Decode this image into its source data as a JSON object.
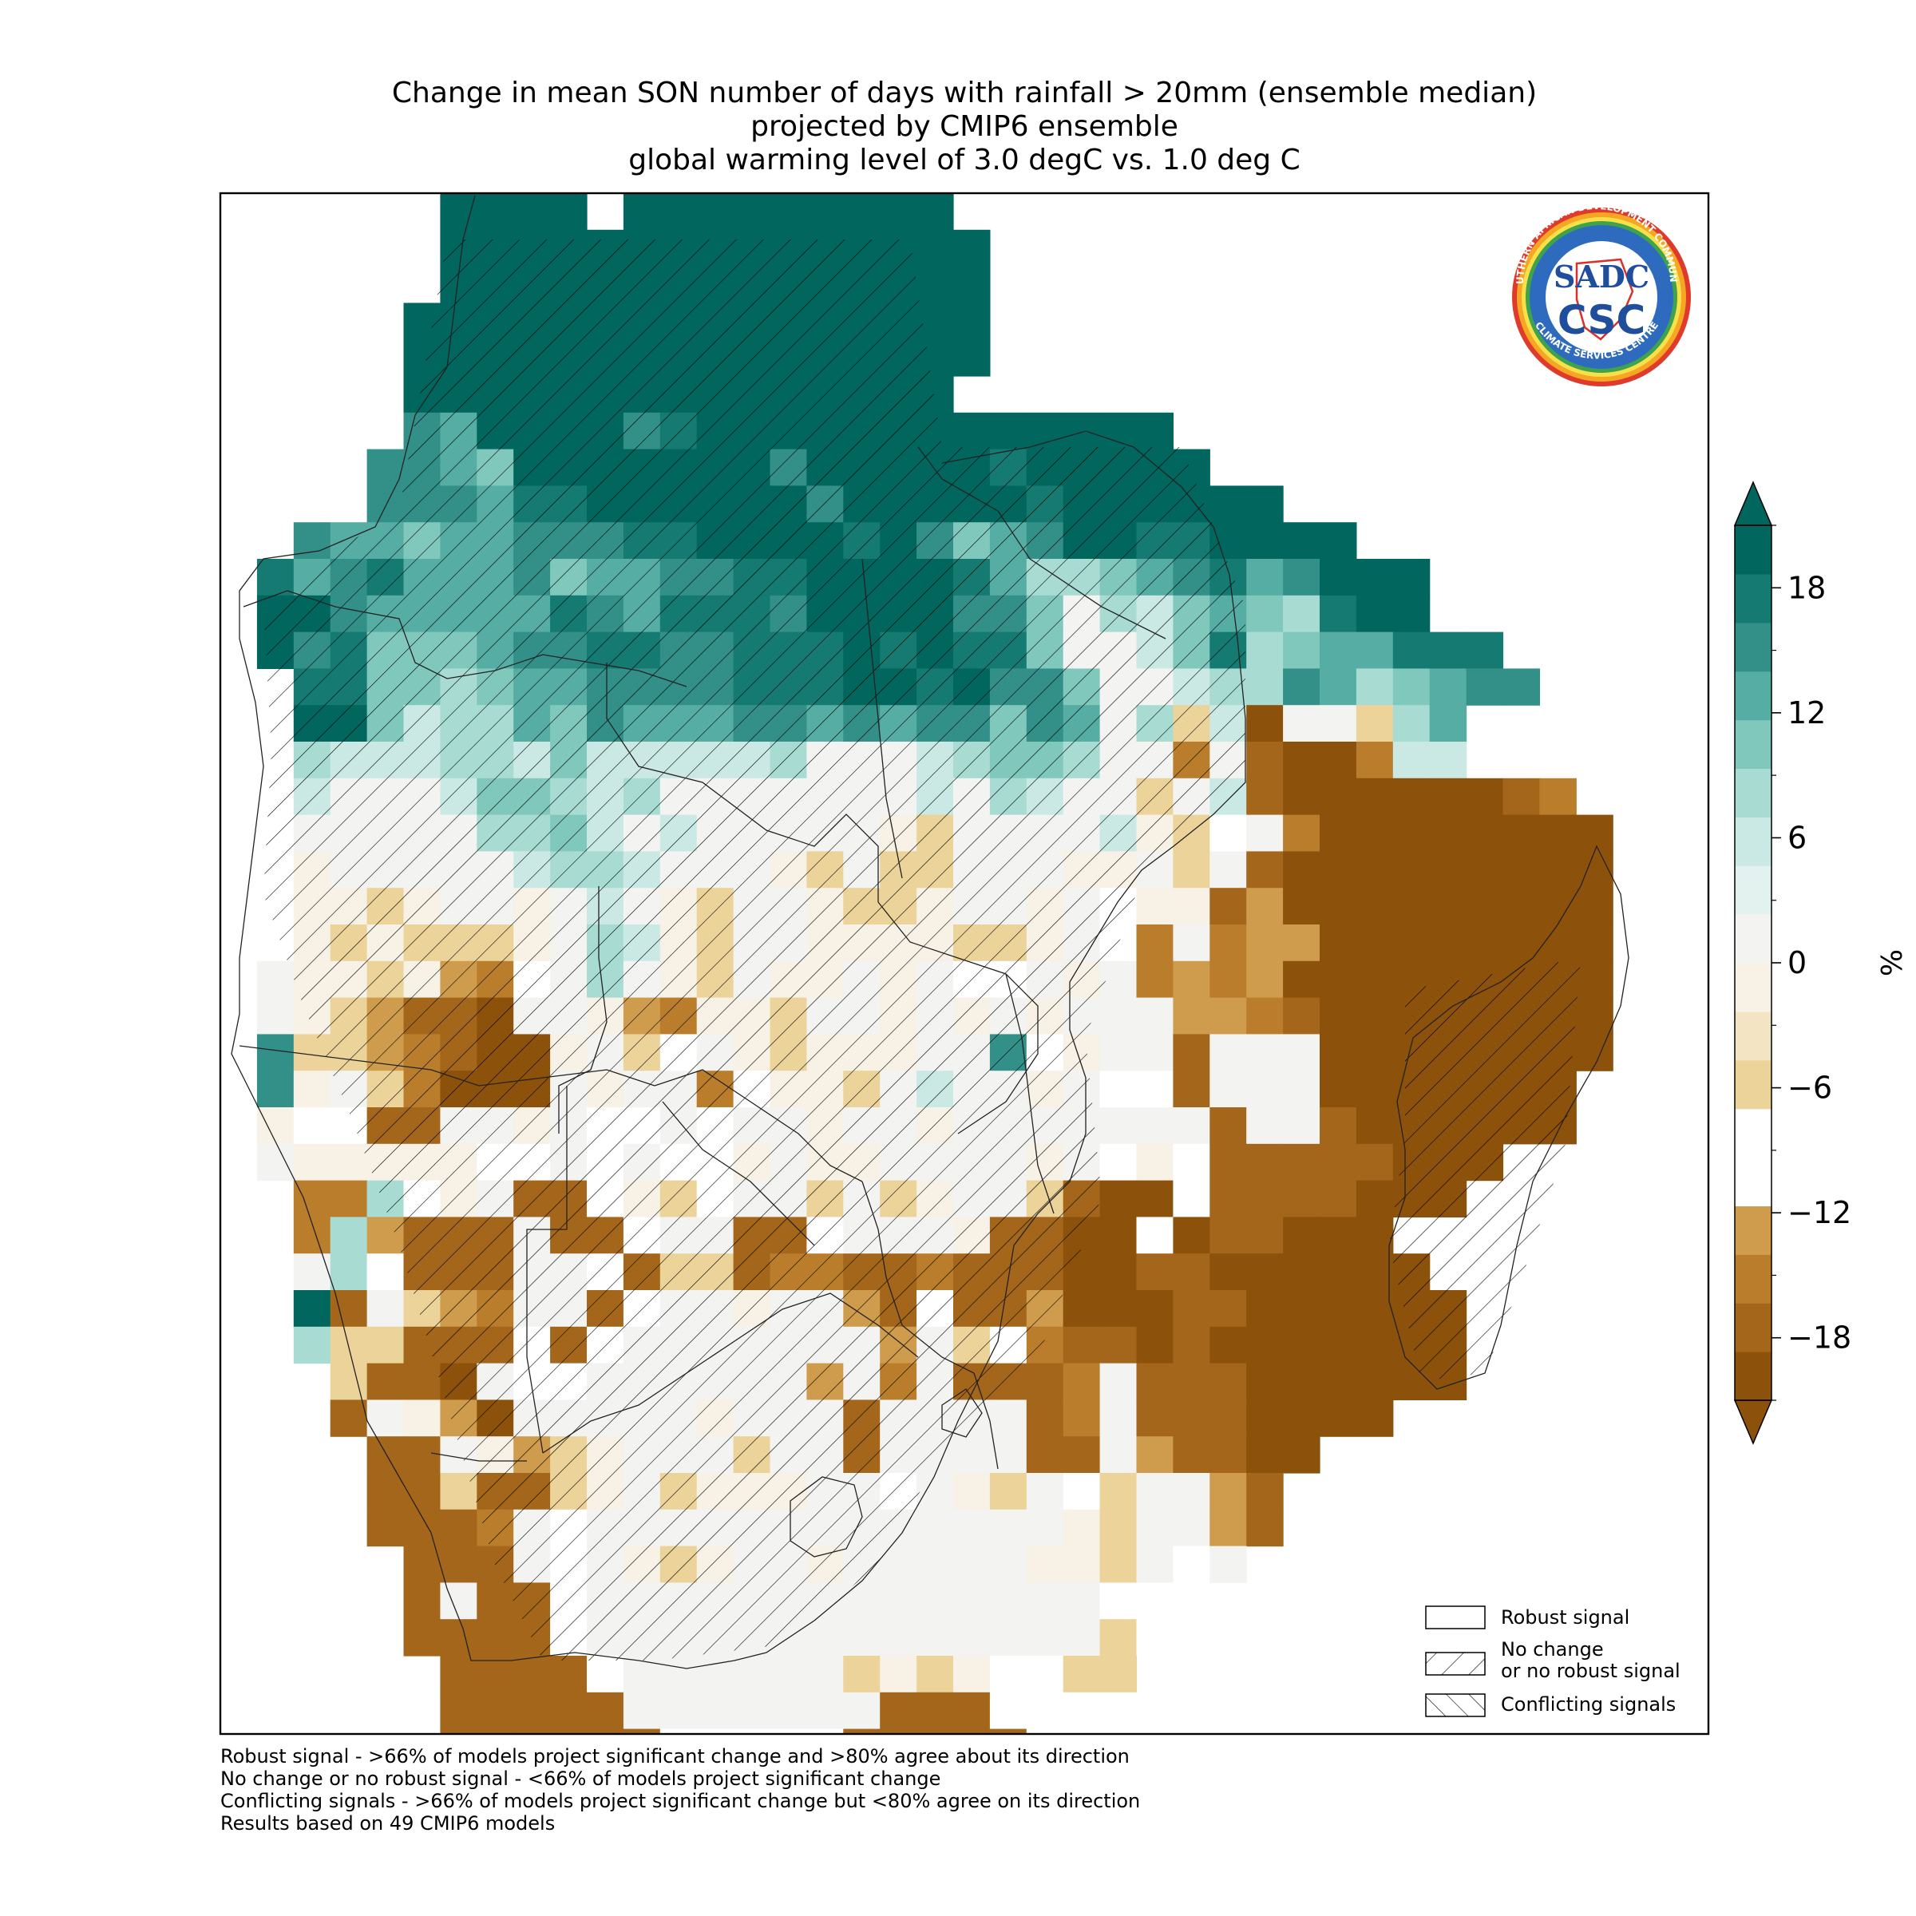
{
  "title": {
    "line1": "Change in mean SON number of days with rainfall > 20mm (ensemble median)",
    "line2": "projected by CMIP6 ensemble",
    "line3": "global warming level of 3.0 degC vs. 1.0 deg C"
  },
  "logo": {
    "ring_text_top": "SOUTHERN AFRICAN DEVELOPMENT COMMUNITY",
    "ring_text_bottom": "CLIMATE SERVICES CENTRE",
    "monogram_top": "SADC",
    "monogram_bottom": "CSC"
  },
  "legend": {
    "robust": "Robust signal",
    "no_change_1": "No change",
    "no_change_2": "or no robust signal",
    "conflicting": "Conflicting signals"
  },
  "colorbar": {
    "label": "%",
    "min": -21,
    "max": 21,
    "tick_values": [
      18,
      12,
      6,
      0,
      -6,
      -12,
      -18
    ],
    "tick_labels": [
      "18",
      "12",
      "6",
      "0",
      "−6",
      "−12",
      "−18"
    ],
    "colors": [
      "#8c510a",
      "#a4661a",
      "#b97d2c",
      "#cf9b4c",
      "#ffffff",
      "#ffffff",
      "#ebd39a",
      "#f3e5c3",
      "#f7f1e6",
      "#f3f3f1",
      "#e4f2ef",
      "#cbe9e4",
      "#a8dcd3",
      "#80c8bc",
      "#56ada3",
      "#339088",
      "#157a71",
      "#01665e"
    ]
  },
  "notes": [
    "Robust signal - >66% of models project significant change and >80% agree about its direction",
    "No change or no robust signal - <66% of models project significant change",
    "Conflicting signals - >66% of models project significant change but <80% agree on its direction",
    "Results based on 49 CMIP6 models"
  ],
  "map_data": {
    "type": "heatmap",
    "variable": "Change in mean SON number of days with rainfall > 20mm",
    "unit": "%",
    "codes": {
      "A": -20,
      "B": -17,
      "C": -15,
      "D": -13,
      "W": -10,
      "E": -7,
      "F": -5,
      "G": -2,
      "H": 0,
      "I": 2,
      "J": 5,
      "K": 7,
      "L": 10,
      "M": 12,
      "N": 15,
      "O": 17,
      "P": 20
    },
    "grid_rows": [
      "......PPPP.PPPPPPPPP........................",
      "......PPPPPPPPPPPPPPP.......................",
      "......PPPPPPPPPPPPPPP.......................",
      ".....PPPPPPPPPPPPPPPP.......................",
      ".....PPPPPPPPPPPPPPPP.......................",
      ".....PPPPPPPPPPPPPPP........................",
      ".....NMPPPPNOPPPPPPPPPPPPP..................",
      "....NNMLPPPPPPPNPPPPPOPPPPP.................",
      "....NNNMOOPPPPPPNPPPPPOPPPPPP...............",
      "..NMMLMMNNNOOPPPPOPNLMNPPOOPPPP.............",
      ".OMNOMMMNLMMNNOOPPPPOMKKLMNOMNPPP...........",
      ".PPNMMMMMONMOOONPPPPNNLIKJLMLKOPP...........",
      ".PNOLLLMNNOONNOOOPOPOOLIIJLOKLMMOOO.........",
      "..OOLLKLMMNNNNOOOPPOPNNLIIJKKNMKLMNN........",
      "..PPLJKKMLNMMMNNMNMNNLNMIKEJAHHEKM..........",
      "..KJJJKKJLJJJJJKIHIJKLLKHHCHBAACJJ..........",
      "..JHIHJLLKJKHHIHIHIJIKJIHEHJBAAAAAABC.......",
      "..HHHHHKKLJHJHIHHHGFHIHHJGEWHCAAAAAAAA......",
      "..GHHHHHJKKJIHHGFHFEHHHGGHFHBAAAAAAAAA......",
      "..GGFGHHGIJHGFHHGFEGHHGHWGGBDAAAAAAAAA..........AA",
      "..GFGEFFGIKJGEIHGGGGEFGHWCHCDDAAAAAAAA..........AA",
      ".IGGFGDCWIKHGFHGGHGHWWHGHCDCDAAAAAAAAA.........CBA",
      ".HGEDBBAHHGDCGGEIHGHGHGHHHDDCBAAAAAAAA......E..BBA",
      ".NFEDCBAAGHFWHGFGGGHINWGHHBHHHAAAAAAAA....DEFGWWAA",
      ".NGHECAAAHGHHCWGGEHJIIGHWWBHHHAAAAAAA.....EFWGWWAA",
      ".GWWBBHHGHWWHWHHGHIGHIHHHHHBHHBAAAAAA.....GFHWWEAA",
      ".HGGGGGWWHWHWWGHGGHHHHGHWGWBBBBBAAA.......FGWHWWG.",
      "..CCKWGHBBWGFWHHFHEGHHEBAAWBBBBAAA........FEGEGGG.",
      "..CKDBBBHBBWHHBBWHHHGBBAAWABBAAA..........IGWEGGC.",
      "..IKWBBBHHWBFFBCCBBCBBBAABBAAAAAA........CGEHGBAA.",
      "..PBHFDCHHBWHHGHHDBWBBDAAABBAAAAAA.......BDEHHDBB.",
      "..KEEBBBWBWHHIIHHHDHFWCBBABAAAAAAA.......BWWHHDBB.",
      "...EBBAHWWHHIHHHDHCHBBBCHBBBAAAAAA........BWWHDB..",
      "...BIGDAHHHHHGHHHBHHHHBCHBBBAAAA..........BDFHHD..",
      "....BBIGDFGHHHFHHBHHHHBBHDBBAA.............BBF....",
      "....BBFBBFGHFGGGHHWHGFHWEHHDB..................",
      "....BBBCHWHHHHHHHHHHHHHGEHHDB..................",
      ".....BBBHWHGFGIHGHHHHHGGEHWH...................",
      ".....BIBBWHHHHHHHHHHHHHHWW.....................",
      ".....BBBBWHHHHIHHHHHHHHHEW.....................",
      "......BBBBWHHHIIHFGFGWWEF......................",
      "......BBBBBHHHHHHHBBBWWWW......................",
      "......BBBBBBWWWWWBBBBBW........................",
      "......BBBBBBBBBBBBBBBB.........................",
      ".......BBBB..........BB........................",
      ".......BB......................................"
    ],
    "notes": "Grid rows run north to south; each character is one model grid cell; '.' = ocean / no data."
  }
}
